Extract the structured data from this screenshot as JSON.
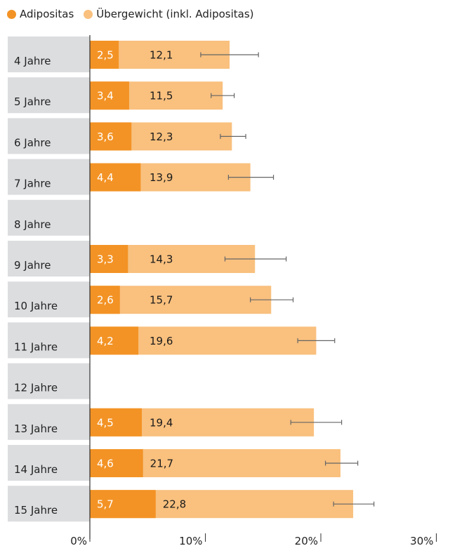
{
  "colors": {
    "adipositas": "#F39325",
    "uebergewicht": "#F9C07E",
    "row_bg": "#DCDDDF",
    "axis": "#333333",
    "error_bar": "#666666",
    "label_light": "#ffffff",
    "label_dark": "#1a1a1a"
  },
  "legend": {
    "adipositas": "Adipositas",
    "uebergewicht": "Übergewicht (inkl. Adipositas)"
  },
  "chart_data": {
    "type": "bar",
    "orientation": "horizontal",
    "categories": [
      "4 Jahre",
      "5 Jahre",
      "6 Jahre",
      "7 Jahre",
      "8 Jahre",
      "9 Jahre",
      "10 Jahre",
      "11 Jahre",
      "12 Jahre",
      "13 Jahre",
      "14 Jahre",
      "15 Jahre"
    ],
    "series": [
      {
        "name": "Adipositas",
        "values": [
          2.5,
          3.4,
          3.6,
          4.4,
          null,
          3.3,
          2.6,
          4.2,
          null,
          4.5,
          4.6,
          5.7
        ],
        "labels": [
          "2,5",
          "3,4",
          "3,6",
          "4,4",
          "",
          "3,3",
          "2,6",
          "4,2",
          "",
          "4,5",
          "4,6",
          "5,7"
        ]
      },
      {
        "name": "Übergewicht (inkl. Adipositas)",
        "values": [
          12.1,
          11.5,
          12.3,
          13.9,
          null,
          14.3,
          15.7,
          19.6,
          null,
          19.4,
          21.7,
          22.8
        ],
        "labels": [
          "12,1",
          "11,5",
          "12,3",
          "13,9",
          "",
          "14,3",
          "15,7",
          "19,6",
          "",
          "19,4",
          "21,7",
          "22,8"
        ],
        "error_low": [
          9.6,
          10.5,
          11.3,
          12.0,
          null,
          11.7,
          13.9,
          18.0,
          null,
          17.4,
          20.4,
          21.1
        ],
        "error_high": [
          14.6,
          12.5,
          13.5,
          15.9,
          null,
          17.0,
          17.6,
          21.2,
          null,
          21.8,
          23.2,
          24.6
        ]
      }
    ],
    "xlim": [
      0,
      30
    ],
    "x_ticks": [
      0,
      10,
      20,
      30
    ],
    "x_tick_labels": [
      "0%",
      "10%",
      "20%",
      "30%"
    ],
    "grid": false,
    "legend_position": "top-left"
  }
}
